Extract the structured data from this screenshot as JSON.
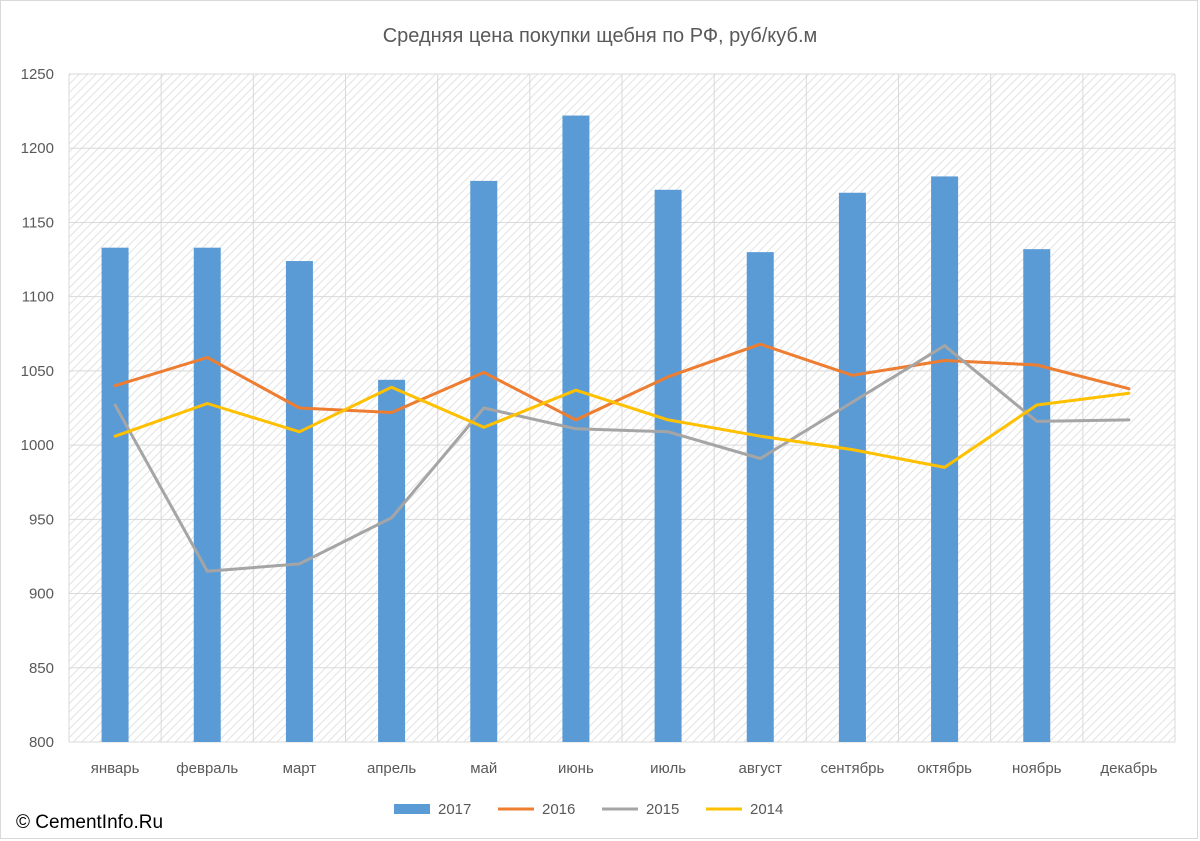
{
  "chart_data": {
    "type": "bar",
    "title": "Средняя цена покупки щебня по РФ, руб/куб.м",
    "categories": [
      "январь",
      "февраль",
      "март",
      "апрель",
      "май",
      "июнь",
      "июль",
      "август",
      "сентябрь",
      "октябрь",
      "ноябрь",
      "декабрь"
    ],
    "ylim": [
      800,
      1250
    ],
    "yticks": [
      800,
      850,
      900,
      950,
      1000,
      1050,
      1100,
      1150,
      1200,
      1250
    ],
    "grid": true,
    "legend_position": "bottom",
    "series": [
      {
        "name": "2017",
        "kind": "bar",
        "color": "#5b9bd5",
        "values": [
          1133,
          1133,
          1124,
          1044,
          1178,
          1222,
          1172,
          1130,
          1170,
          1181,
          1132,
          null
        ]
      },
      {
        "name": "2016",
        "kind": "line",
        "color": "#ed7d31",
        "values": [
          1040,
          1059,
          1025,
          1022,
          1049,
          1017,
          1046,
          1068,
          1047,
          1057,
          1054,
          1038
        ]
      },
      {
        "name": "2015",
        "kind": "line",
        "color": "#a5a5a5",
        "values": [
          1027,
          915,
          920,
          951,
          1025,
          1011,
          1009,
          991,
          1029,
          1067,
          1016,
          1017
        ]
      },
      {
        "name": "2014",
        "kind": "line",
        "color": "#ffc000",
        "values": [
          1006,
          1028,
          1009,
          1039,
          1012,
          1037,
          1017,
          1006,
          997,
          985,
          1027,
          1035
        ]
      }
    ]
  },
  "footer": {
    "copyright": "© CementInfo.Ru"
  }
}
